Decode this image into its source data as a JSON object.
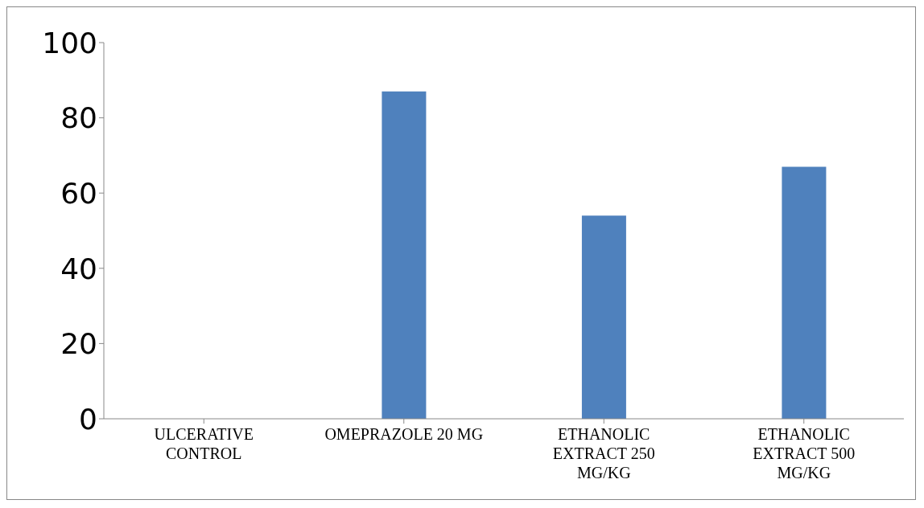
{
  "chart_data": {
    "type": "bar",
    "categories": [
      "ULCERATIVE CONTROL",
      "OMEPRAZOLE 20 MG",
      "ETHANOLIC EXTRACT 250 MG/KG",
      "ETHANOLIC EXTRACT 500 MG/KG"
    ],
    "values": [
      0,
      87,
      54,
      67
    ],
    "color": "#4f81bd",
    "ylim": [
      0,
      100
    ],
    "yticks": [
      0,
      20,
      40,
      60,
      80,
      100
    ],
    "grid": false,
    "legend": false
  }
}
